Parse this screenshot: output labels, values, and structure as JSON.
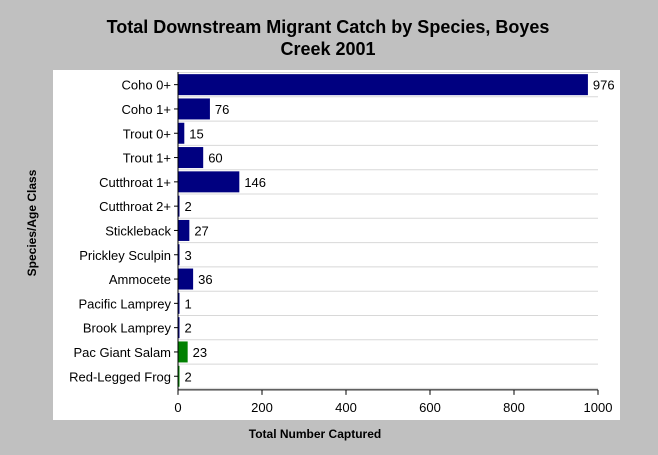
{
  "chart_data": {
    "type": "bar",
    "orientation": "horizontal",
    "title_line1": "Total Downstream Migrant Catch by Species, Boyes",
    "title_line2": "Creek 2001",
    "xlabel": "Total Number Captured",
    "ylabel": "Species/Age Class",
    "xlim": [
      0,
      1000
    ],
    "xticks": [
      0,
      200,
      400,
      600,
      800,
      1000
    ],
    "grid": "horizontal",
    "legend": "none",
    "categories": [
      "Coho 0+",
      "Coho 1+",
      "Trout 0+",
      "Trout 1+",
      "Cutthroat 1+",
      "Cutthroat 2+",
      "Stickleback",
      "Prickley Sculpin",
      "Ammocete",
      "Pacific Lamprey",
      "Brook Lamprey",
      "Pac Giant Salam",
      "Red-Legged Frog"
    ],
    "values": [
      976,
      76,
      15,
      60,
      146,
      2,
      27,
      3,
      36,
      1,
      2,
      23,
      2
    ],
    "colors": {
      "fish": "#000080",
      "amphibian": "#008000",
      "background": "#c0c0c0",
      "plot_area": "#ffffff"
    },
    "bar_groups": [
      "fish",
      "fish",
      "fish",
      "fish",
      "fish",
      "fish",
      "fish",
      "fish",
      "fish",
      "fish",
      "fish",
      "amphibian",
      "amphibian"
    ]
  }
}
